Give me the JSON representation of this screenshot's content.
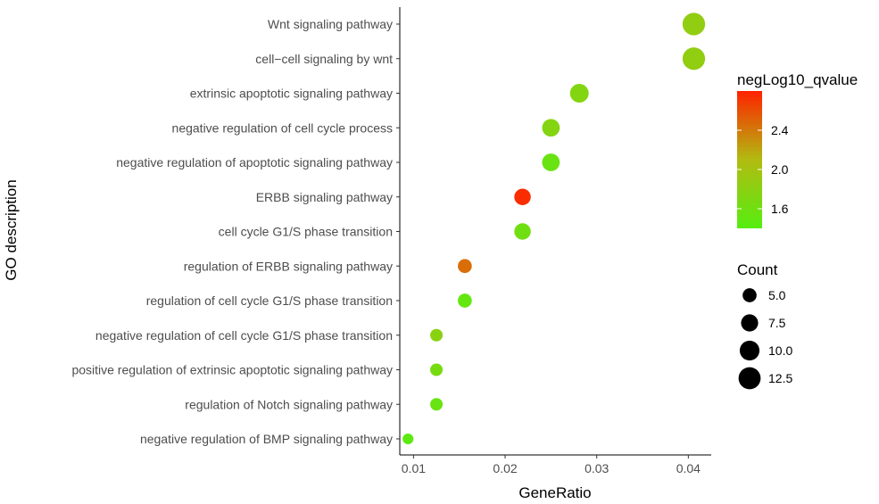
{
  "chart_data": {
    "type": "scatter",
    "xlabel": "GeneRatio",
    "ylabel": "GO description",
    "xlim": [
      0.0085,
      0.0425
    ],
    "xticks": [
      0.01,
      0.02,
      0.03,
      0.04
    ],
    "xtick_labels": [
      "0.01",
      "0.02",
      "0.03",
      "0.04"
    ],
    "grid": false,
    "categories": [
      "Wnt signaling pathway",
      "cell−cell signaling by wnt",
      "extrinsic apoptotic signaling pathway",
      "negative regulation of cell cycle process",
      "negative regulation of apoptotic signaling pathway",
      "ERBB signaling pathway",
      "cell cycle G1/S phase transition",
      "regulation of ERBB signaling pathway",
      "regulation of cell cycle G1/S phase transition",
      "negative regulation of cell cycle G1/S phase transition",
      "positive regulation of extrinsic apoptotic signaling pathway",
      "regulation of Notch signaling pathway",
      "negative regulation of BMP signaling pathway"
    ],
    "points": [
      {
        "category": "Wnt signaling pathway",
        "gene_ratio": 0.0406,
        "count": 13,
        "neg_log10_qvalue": 1.85
      },
      {
        "category": "cell−cell signaling by wnt",
        "gene_ratio": 0.0406,
        "count": 13,
        "neg_log10_qvalue": 1.85
      },
      {
        "category": "extrinsic apoptotic signaling pathway",
        "gene_ratio": 0.0281,
        "count": 9,
        "neg_log10_qvalue": 1.75
      },
      {
        "category": "negative regulation of cell cycle process",
        "gene_ratio": 0.025,
        "count": 8,
        "neg_log10_qvalue": 1.75
      },
      {
        "category": "negative regulation of apoptotic signaling pathway",
        "gene_ratio": 0.025,
        "count": 8,
        "neg_log10_qvalue": 1.55
      },
      {
        "category": "ERBB signaling pathway",
        "gene_ratio": 0.0219,
        "count": 7,
        "neg_log10_qvalue": 2.75
      },
      {
        "category": "cell cycle G1/S phase transition",
        "gene_ratio": 0.0219,
        "count": 7,
        "neg_log10_qvalue": 1.6
      },
      {
        "category": "regulation of ERBB signaling pathway",
        "gene_ratio": 0.0156,
        "count": 5,
        "neg_log10_qvalue": 2.45
      },
      {
        "category": "regulation of cell cycle G1/S phase transition",
        "gene_ratio": 0.0156,
        "count": 5,
        "neg_log10_qvalue": 1.5
      },
      {
        "category": "negative regulation of cell cycle G1/S phase transition",
        "gene_ratio": 0.0125,
        "count": 4,
        "neg_log10_qvalue": 1.8
      },
      {
        "category": "positive regulation of extrinsic apoptotic signaling pathway",
        "gene_ratio": 0.0125,
        "count": 4,
        "neg_log10_qvalue": 1.65
      },
      {
        "category": "regulation of Notch signaling pathway",
        "gene_ratio": 0.0125,
        "count": 4,
        "neg_log10_qvalue": 1.55
      },
      {
        "category": "negative regulation of BMP signaling pathway",
        "gene_ratio": 0.0094,
        "count": 3,
        "neg_log10_qvalue": 1.45
      }
    ],
    "color_legend": {
      "title": "negLog10_qvalue",
      "min": 1.4,
      "max": 2.8,
      "ticks": [
        1.6,
        2.0,
        2.4
      ],
      "tick_labels": [
        "1.6",
        "2.0",
        "2.4"
      ],
      "low_color": "#55ee11",
      "mid_color": "#b2bb11",
      "high_color": "#ff2200"
    },
    "size_legend": {
      "title": "Count",
      "values": [
        5.0,
        7.5,
        10.0,
        12.5
      ],
      "labels": [
        "5.0",
        "7.5",
        "10.0",
        "12.5"
      ]
    },
    "legend_position": "right"
  }
}
